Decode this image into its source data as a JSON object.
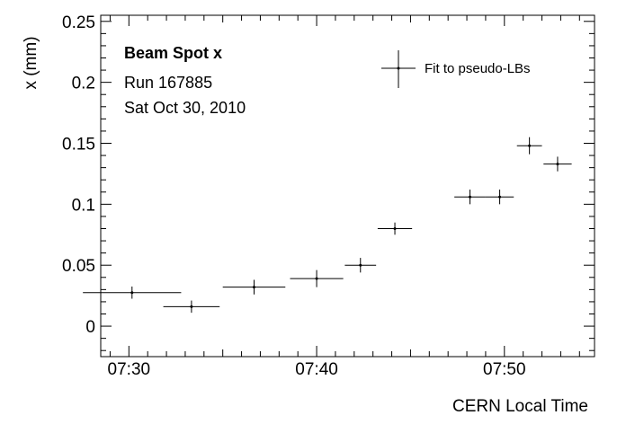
{
  "chart_data": {
    "type": "scatter",
    "title": "",
    "xlabel": "CERN Local Time",
    "ylabel": "x (mm)",
    "xlim_minutes": [
      28.5,
      54.8
    ],
    "ylim": [
      -0.025,
      0.255
    ],
    "x_ticks": [
      {
        "value": 30,
        "label": "07:30"
      },
      {
        "value": 40,
        "label": "07:40"
      },
      {
        "value": 50,
        "label": "07:50"
      }
    ],
    "y_ticks": [
      {
        "value": 0,
        "label": "0"
      },
      {
        "value": 0.05,
        "label": "0.05"
      },
      {
        "value": 0.1,
        "label": "0.1"
      },
      {
        "value": 0.15,
        "label": "0.15"
      },
      {
        "value": 0.2,
        "label": "0.2"
      },
      {
        "value": 0.25,
        "label": "0.25"
      }
    ],
    "annotations": [
      "Beam Spot x",
      "Run 167885",
      "Sat Oct 30, 2010"
    ],
    "legend": {
      "position": "top-right",
      "entries": [
        "Fit to pseudo-LBs"
      ]
    },
    "series": [
      {
        "name": "Fit to pseudo-LBs",
        "marker": "errorbar-cross",
        "color": "#000000",
        "points": [
          {
            "x": "07:30:10",
            "x_low": "07:27:33",
            "x_high": "07:32:47",
            "y": 0.0275,
            "y_err": 0.005
          },
          {
            "x": "07:33:20",
            "x_low": "07:31:50",
            "x_high": "07:34:50",
            "y": 0.016,
            "y_err": 0.005
          },
          {
            "x": "07:36:40",
            "x_low": "07:35:00",
            "x_high": "07:38:20",
            "y": 0.032,
            "y_err": 0.006
          },
          {
            "x": "07:40:00",
            "x_low": "07:38:35",
            "x_high": "07:41:25",
            "y": 0.039,
            "y_err": 0.007
          },
          {
            "x": "07:42:20",
            "x_low": "07:41:30",
            "x_high": "07:43:10",
            "y": 0.05,
            "y_err": 0.006
          },
          {
            "x": "07:44:10",
            "x_low": "07:43:15",
            "x_high": "07:45:05",
            "y": 0.08,
            "y_err": 0.005
          },
          {
            "x": "07:48:10",
            "x_low": "07:47:20",
            "x_high": "07:49:00",
            "y": 0.106,
            "y_err": 0.006
          },
          {
            "x": "07:49:45",
            "x_low": "07:49:00",
            "x_high": "07:50:30",
            "y": 0.106,
            "y_err": 0.006
          },
          {
            "x": "07:51:20",
            "x_low": "07:50:40",
            "x_high": "07:52:00",
            "y": 0.148,
            "y_err": 0.007
          },
          {
            "x": "07:52:50",
            "x_low": "07:52:05",
            "x_high": "07:53:35",
            "y": 0.133,
            "y_err": 0.006
          }
        ]
      }
    ]
  }
}
